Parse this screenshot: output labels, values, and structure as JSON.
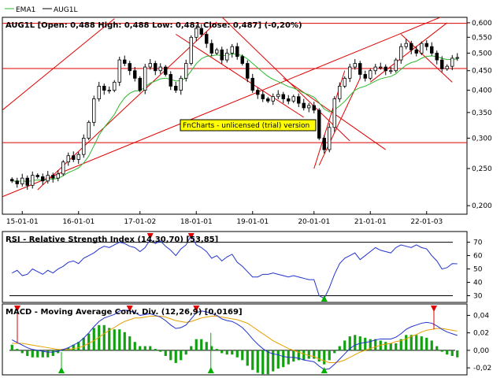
{
  "legend": {
    "items": [
      {
        "name": "EMA1",
        "color": "#2db82d"
      },
      {
        "name": "AUG1L",
        "color": "#000000"
      }
    ]
  },
  "watermark": "FnCharts - unlicensed (trial) version",
  "chart_data": [
    {
      "panel": "price",
      "type": "candlestick",
      "title": "AUG1L [Open: 0,488  High: 0,488  Low: 0,481  Close: 0,487] (-0,20%)",
      "y_scale": "log",
      "ylim": [
        0.19,
        0.62
      ],
      "y_ticks": [
        "0,600",
        "0,550",
        "0,500",
        "0,450",
        "0,400",
        "0,350",
        "0,300",
        "0,250",
        "0,200"
      ],
      "x_ticks": [
        "15-01-01",
        "16-01-01",
        "17-01-02",
        "18-01-01",
        "19-01-01",
        "20-01-01",
        "21-01-01",
        "22-01-03"
      ],
      "candles_close": [
        0.232,
        0.228,
        0.236,
        0.226,
        0.24,
        0.238,
        0.232,
        0.24,
        0.236,
        0.242,
        0.26,
        0.27,
        0.264,
        0.272,
        0.3,
        0.33,
        0.38,
        0.41,
        0.4,
        0.4,
        0.42,
        0.48,
        0.47,
        0.45,
        0.43,
        0.4,
        0.46,
        0.47,
        0.45,
        0.46,
        0.44,
        0.41,
        0.4,
        0.43,
        0.47,
        0.55,
        0.58,
        0.56,
        0.53,
        0.5,
        0.51,
        0.48,
        0.5,
        0.52,
        0.49,
        0.47,
        0.43,
        0.4,
        0.39,
        0.38,
        0.375,
        0.385,
        0.39,
        0.38,
        0.375,
        0.385,
        0.37,
        0.36,
        0.365,
        0.355,
        0.3,
        0.28,
        0.32,
        0.38,
        0.41,
        0.43,
        0.46,
        0.47,
        0.44,
        0.43,
        0.45,
        0.46,
        0.46,
        0.45,
        0.45,
        0.48,
        0.52,
        0.53,
        0.51,
        0.5,
        0.53,
        0.52,
        0.5,
        0.48,
        0.455,
        0.462,
        0.485,
        0.487
      ],
      "series": [
        {
          "name": "EMA1",
          "color": "#2db82d"
        }
      ],
      "hlines": [
        0.598,
        0.456,
        0.292
      ]
    },
    {
      "panel": "rsi",
      "type": "line",
      "title": "RSI - Relative Strength Index (14,30,70) [53,85]",
      "ylim": [
        25,
        78
      ],
      "y_ticks": [
        "70",
        "60",
        "50",
        "40",
        "30"
      ],
      "levels": [
        70,
        30
      ],
      "series": [
        {
          "name": "RSI",
          "color": "#2233cc",
          "values": [
            47,
            49,
            45,
            46,
            50,
            48,
            46,
            49,
            47,
            50,
            52,
            55,
            56,
            54,
            58,
            60,
            62,
            65,
            67,
            66,
            68,
            70,
            69,
            67,
            66,
            63,
            66,
            72,
            69,
            71,
            67,
            64,
            60,
            65,
            68,
            75,
            68,
            66,
            63,
            58,
            60,
            56,
            59,
            61,
            55,
            52,
            48,
            44,
            44,
            46,
            46,
            47,
            46,
            45,
            44,
            45,
            44,
            43,
            42,
            42,
            30,
            28,
            36,
            46,
            54,
            58,
            60,
            62,
            57,
            60,
            63,
            66,
            64,
            63,
            62,
            66,
            68,
            67,
            66,
            68,
            66,
            65,
            60,
            56,
            50,
            51,
            54,
            53.85
          ]
        }
      ]
    },
    {
      "panel": "macd",
      "type": "line+bar",
      "title": "MACD - Moving Average Conv. Div. (12,26,9) [0,0169]",
      "ylim": [
        -0.028,
        0.053
      ],
      "y_ticks": [
        "0,04",
        "0,02",
        "0,00",
        "-0,02"
      ],
      "series": [
        {
          "name": "MACD",
          "color": "#2233cc",
          "values": [
            0.012,
            0.009,
            0.006,
            0.003,
            0.001,
            0.0,
            -0.001,
            -0.002,
            -0.002,
            -0.001,
            0.001,
            0.003,
            0.006,
            0.009,
            0.014,
            0.02,
            0.027,
            0.033,
            0.037,
            0.039,
            0.041,
            0.045,
            0.046,
            0.045,
            0.043,
            0.04,
            0.041,
            0.042,
            0.04,
            0.038,
            0.034,
            0.029,
            0.025,
            0.026,
            0.029,
            0.036,
            0.043,
            0.045,
            0.044,
            0.042,
            0.04,
            0.036,
            0.034,
            0.033,
            0.03,
            0.026,
            0.02,
            0.013,
            0.007,
            0.002,
            -0.002,
            -0.004,
            -0.005,
            -0.007,
            -0.008,
            -0.008,
            -0.009,
            -0.011,
            -0.012,
            -0.013,
            -0.018,
            -0.022,
            -0.021,
            -0.016,
            -0.01,
            -0.004,
            0.002,
            0.006,
            0.008,
            0.009,
            0.01,
            0.012,
            0.013,
            0.013,
            0.013,
            0.015,
            0.019,
            0.024,
            0.027,
            0.029,
            0.031,
            0.032,
            0.031,
            0.028,
            0.024,
            0.021,
            0.019,
            0.017
          ]
        },
        {
          "name": "Signal",
          "color": "#e8a000",
          "values": [
            0.008,
            0.008,
            0.008,
            0.007,
            0.006,
            0.005,
            0.004,
            0.003,
            0.002,
            0.001,
            0.001,
            0.001,
            0.002,
            0.003,
            0.005,
            0.008,
            0.011,
            0.015,
            0.019,
            0.023,
            0.026,
            0.03,
            0.033,
            0.035,
            0.037,
            0.037,
            0.038,
            0.039,
            0.039,
            0.039,
            0.038,
            0.036,
            0.034,
            0.033,
            0.032,
            0.033,
            0.035,
            0.037,
            0.038,
            0.039,
            0.039,
            0.038,
            0.037,
            0.036,
            0.035,
            0.033,
            0.031,
            0.027,
            0.023,
            0.019,
            0.015,
            0.011,
            0.008,
            0.005,
            0.002,
            0.0,
            -0.002,
            -0.004,
            -0.006,
            -0.007,
            -0.01,
            -0.012,
            -0.014,
            -0.014,
            -0.013,
            -0.011,
            -0.008,
            -0.005,
            -0.002,
            0.0,
            0.002,
            0.004,
            0.006,
            0.007,
            0.008,
            0.01,
            0.011,
            0.013,
            0.016,
            0.018,
            0.021,
            0.023,
            0.024,
            0.025,
            0.025,
            0.024,
            0.023,
            0.022
          ]
        }
      ]
    }
  ]
}
